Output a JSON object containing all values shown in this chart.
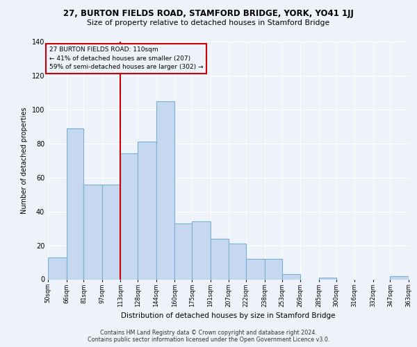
{
  "title1": "27, BURTON FIELDS ROAD, STAMFORD BRIDGE, YORK, YO41 1JJ",
  "title2": "Size of property relative to detached houses in Stamford Bridge",
  "xlabel": "Distribution of detached houses by size in Stamford Bridge",
  "ylabel": "Number of detached properties",
  "bar_color": "#c5d8f0",
  "bar_edge_color": "#7aafd4",
  "vline_color": "#cc0000",
  "vline_x": 113,
  "annotation_title": "27 BURTON FIELDS ROAD: 110sqm",
  "annotation_line2": "← 41% of detached houses are smaller (207)",
  "annotation_line3": "59% of semi-detached houses are larger (302) →",
  "annotation_box_color": "#cc0000",
  "bin_edges": [
    50,
    66,
    81,
    97,
    113,
    128,
    144,
    160,
    175,
    191,
    207,
    222,
    238,
    253,
    269,
    285,
    300,
    316,
    332,
    347,
    363
  ],
  "bar_heights": [
    13,
    89,
    56,
    56,
    74,
    81,
    105,
    33,
    34,
    24,
    21,
    12,
    12,
    3,
    0,
    1,
    0,
    0,
    0,
    2
  ],
  "ylim": [
    0,
    140
  ],
  "yticks": [
    0,
    20,
    40,
    60,
    80,
    100,
    120,
    140
  ],
  "footer1": "Contains HM Land Registry data © Crown copyright and database right 2024.",
  "footer2": "Contains public sector information licensed under the Open Government Licence v3.0.",
  "background_color": "#eef2fb",
  "grid_color": "#ffffff"
}
